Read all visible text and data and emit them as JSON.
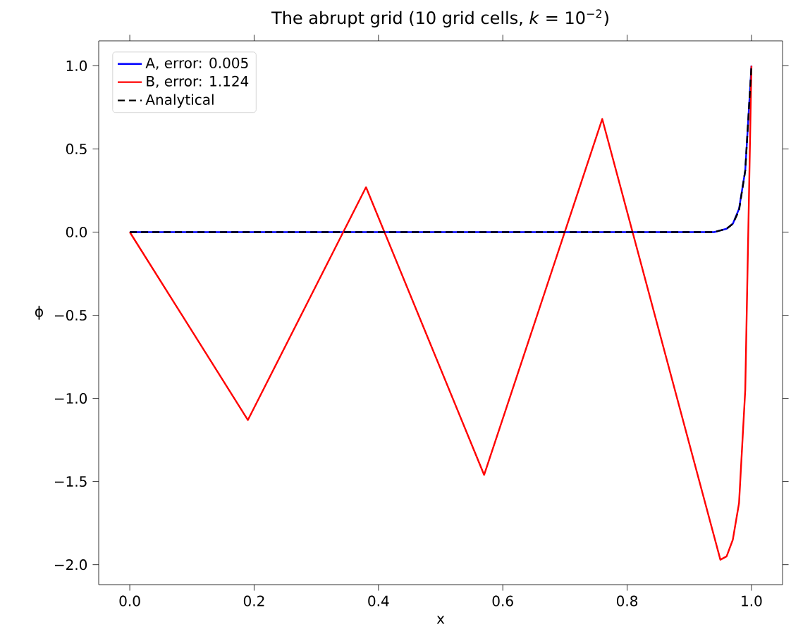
{
  "chart_data": {
    "type": "line",
    "title": "The abrupt grid (10 grid cells, *k* = 10$^{−2}$)",
    "xlabel": "x",
    "ylabel": "ϕ",
    "xlim": [
      -0.05,
      1.05
    ],
    "ylim": [
      -2.12,
      1.15
    ],
    "xticks": [
      {
        "value": 0,
        "label": "0.0"
      },
      {
        "value": 0.2,
        "label": "0.2"
      },
      {
        "value": 0.4,
        "label": "0.4"
      },
      {
        "value": 0.6,
        "label": "0.6"
      },
      {
        "value": 0.8,
        "label": "0.8"
      },
      {
        "value": 1,
        "label": "1.0"
      }
    ],
    "yticks": [
      {
        "value": -2,
        "label": "−2.0"
      },
      {
        "value": -1.5,
        "label": "−1.5"
      },
      {
        "value": -1,
        "label": "−1.0"
      },
      {
        "value": -0.5,
        "label": "−0.5"
      },
      {
        "value": 0,
        "label": "0.0"
      },
      {
        "value": 0.5,
        "label": "0.5"
      },
      {
        "value": 1,
        "label": "1.0"
      }
    ],
    "legend": "top left",
    "grid": false,
    "series": [
      {
        "name": "A, error: 0.005",
        "color": "#0000ff",
        "line_style": "solid",
        "x": [
          0,
          0.2,
          0.4,
          0.6,
          0.8,
          0.9,
          0.94,
          0.95,
          0.96,
          0.97,
          0.98,
          0.99,
          1.0
        ],
        "values": [
          0,
          0,
          0,
          0,
          0,
          0,
          0,
          0.01,
          0.02,
          0.05,
          0.14,
          0.37,
          1.0
        ]
      },
      {
        "name": "B, error: 1.124",
        "color": "#ff0000",
        "line_style": "solid",
        "x": [
          0,
          0.19,
          0.38,
          0.57,
          0.76,
          0.95,
          0.96,
          0.97,
          0.98,
          0.99,
          1.0
        ],
        "values": [
          0,
          -1.13,
          0.27,
          -1.46,
          0.68,
          -1.97,
          -1.95,
          -1.85,
          -1.63,
          -0.95,
          1.0
        ]
      },
      {
        "name": "Analytical",
        "color": "#000000",
        "line_style": "dashed",
        "x": [
          0,
          0.2,
          0.4,
          0.6,
          0.8,
          0.9,
          0.94,
          0.95,
          0.96,
          0.97,
          0.98,
          0.99,
          1.0
        ],
        "values": [
          0,
          0,
          0,
          0,
          0,
          0,
          0,
          0.01,
          0.02,
          0.05,
          0.13,
          0.37,
          1.0
        ]
      }
    ]
  }
}
